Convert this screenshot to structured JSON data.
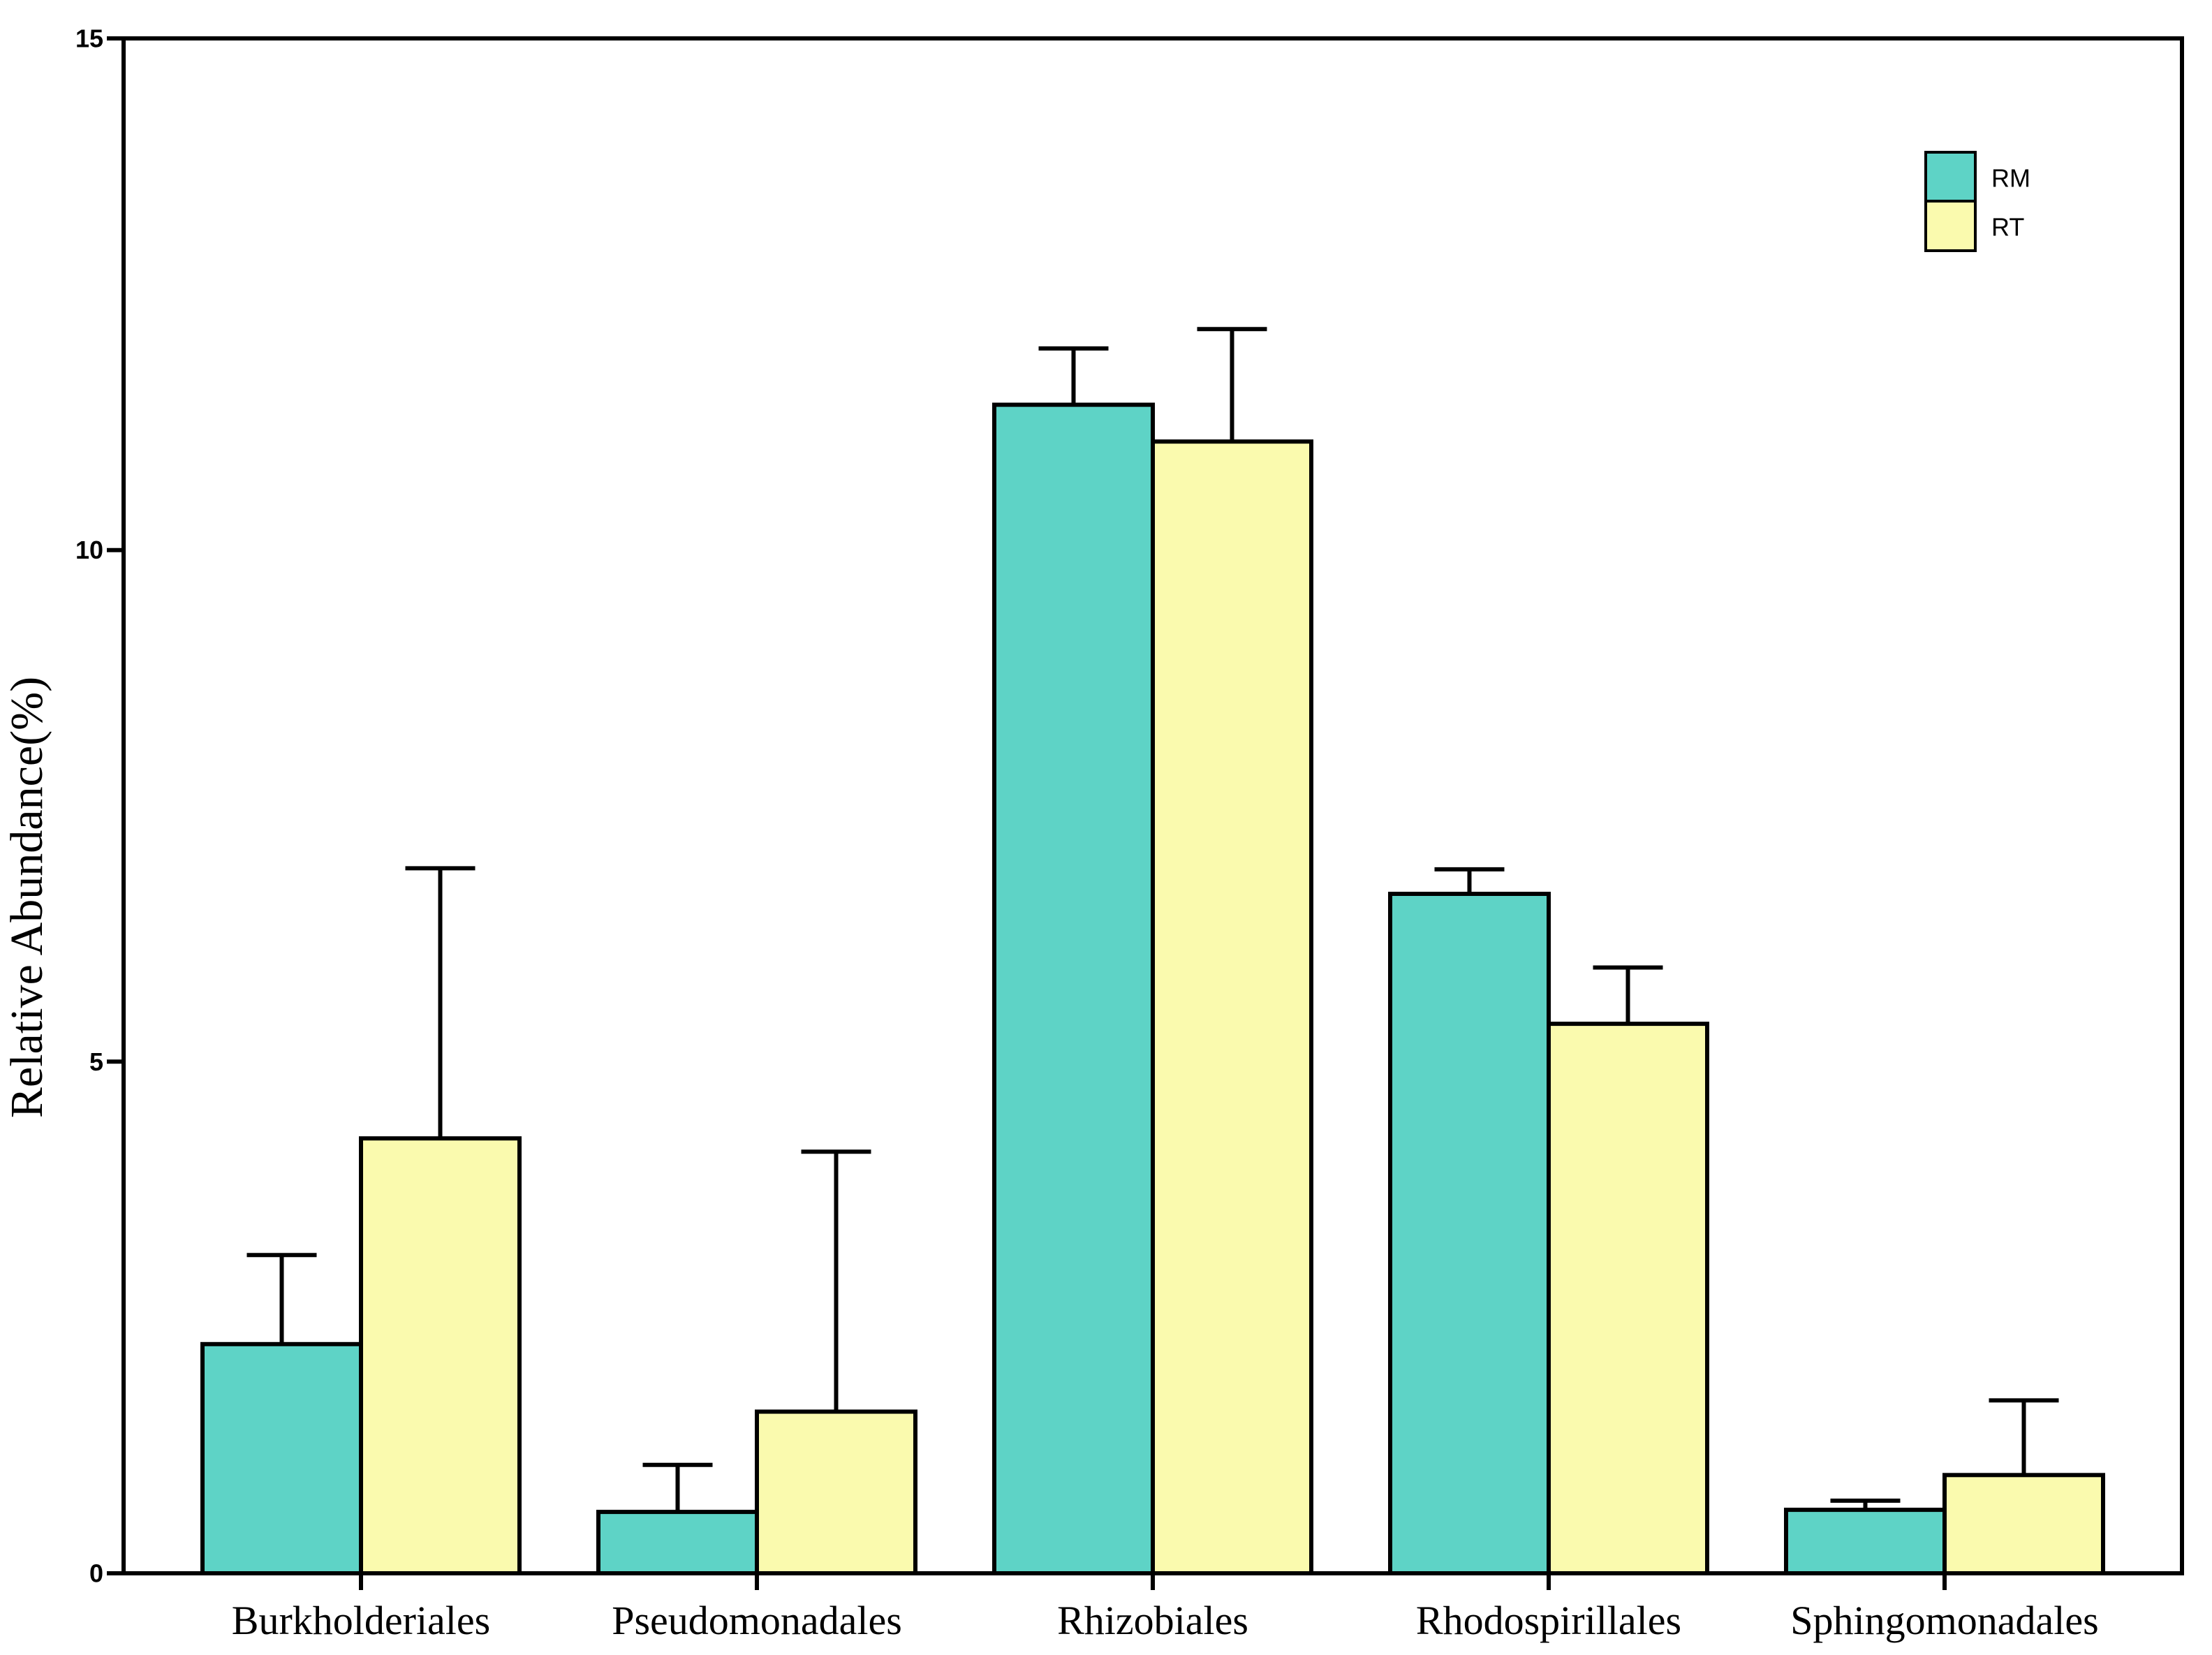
{
  "chart_data": {
    "type": "bar",
    "title": "",
    "xlabel": "",
    "ylabel": "Relative Abundance(%)",
    "ylim": [
      0,
      15
    ],
    "yticks": [
      0,
      5,
      10,
      15
    ],
    "grid": false,
    "legend_position": "top-right",
    "error_bars": "upper",
    "background_color": "#FFFFFF",
    "frame_color": "#000000",
    "categories": [
      "Burkholderiales",
      "Pseudomonadales",
      "Rhizobiales",
      "Rhodospirillales",
      "Sphingomonadales"
    ],
    "series": [
      {
        "name": "RM",
        "color": "#5ED3C6",
        "values": [
          2.24,
          0.6,
          11.42,
          6.64,
          0.62
        ],
        "errors_plus": [
          0.87,
          0.46,
          0.55,
          0.24,
          0.09
        ]
      },
      {
        "name": "RT",
        "color": "#FAFAAE",
        "values": [
          4.25,
          1.58,
          11.06,
          5.37,
          0.96
        ],
        "errors_plus": [
          2.64,
          2.54,
          1.1,
          0.55,
          0.73
        ]
      }
    ]
  }
}
